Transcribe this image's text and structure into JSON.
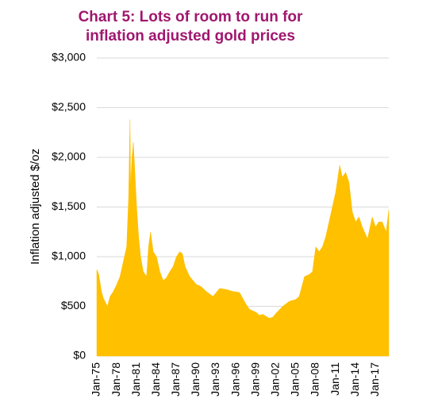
{
  "chart_data": {
    "type": "area",
    "title": [
      "Chart 5: Lots of room to run for",
      "inflation adjusted gold prices"
    ],
    "y_label": "Inflation adjusted $/oz",
    "color": "#ffc000",
    "grid": true,
    "xlim": [
      1975,
      2019
    ],
    "ylim": [
      0,
      3000
    ],
    "yticks": [
      {
        "value": 0,
        "label": "$0"
      },
      {
        "value": 500,
        "label": "$500"
      },
      {
        "value": 1000,
        "label": "$1,000"
      },
      {
        "value": 1500,
        "label": "$1,500"
      },
      {
        "value": 2000,
        "label": "$2,000"
      },
      {
        "value": 2500,
        "label": "$2,500"
      },
      {
        "value": 3000,
        "label": "$3,000"
      }
    ],
    "xticks": [
      {
        "value": 1975,
        "label": "Jan-75"
      },
      {
        "value": 1978,
        "label": "Jan-78"
      },
      {
        "value": 1981,
        "label": "Jan-81"
      },
      {
        "value": 1984,
        "label": "Jan-84"
      },
      {
        "value": 1987,
        "label": "Jan-87"
      },
      {
        "value": 1990,
        "label": "Jan-90"
      },
      {
        "value": 1993,
        "label": "Jan-93"
      },
      {
        "value": 1996,
        "label": "Jan-96"
      },
      {
        "value": 1999,
        "label": "Jan-99"
      },
      {
        "value": 2002,
        "label": "Jan-02"
      },
      {
        "value": 2005,
        "label": "Jan-05"
      },
      {
        "value": 2008,
        "label": "Jan-08"
      },
      {
        "value": 2011,
        "label": "Jan-11"
      },
      {
        "value": 2014,
        "label": "Jan-14"
      },
      {
        "value": 2017,
        "label": "Jan-17"
      }
    ],
    "x": [
      1975.0,
      1975.3,
      1975.7,
      1976.0,
      1976.6,
      1977.0,
      1977.5,
      1978.0,
      1978.5,
      1979.0,
      1979.5,
      1979.8,
      1980.0,
      1980.1,
      1980.3,
      1980.5,
      1980.7,
      1981.0,
      1981.3,
      1981.6,
      1982.0,
      1982.5,
      1982.8,
      1983.1,
      1983.5,
      1984.0,
      1984.5,
      1985.0,
      1985.5,
      1986.0,
      1986.5,
      1987.0,
      1987.5,
      1987.9,
      1988.3,
      1989.0,
      1990.0,
      1990.7,
      1991.5,
      1992.5,
      1993.5,
      1994.5,
      1995.5,
      1996.5,
      1997.0,
      1997.5,
      1998.0,
      1999.0,
      1999.5,
      2000.0,
      2001.0,
      2001.5,
      2002.0,
      2003.0,
      2004.0,
      2005.0,
      2005.5,
      2006.3,
      2007.0,
      2007.5,
      2008.0,
      2008.5,
      2009.0,
      2009.5,
      2010.0,
      2010.5,
      2011.0,
      2011.6,
      2012.0,
      2012.5,
      2013.0,
      2013.5,
      2014.0,
      2014.5,
      2015.0,
      2015.8,
      2016.5,
      2017.0,
      2017.5,
      2018.0,
      2018.6,
      2019.0
    ],
    "values": [
      870,
      820,
      650,
      580,
      500,
      600,
      650,
      720,
      800,
      950,
      1100,
      1600,
      2380,
      1700,
      2000,
      2150,
      1900,
      1500,
      1200,
      1000,
      850,
      800,
      1100,
      1250,
      1050,
      1000,
      850,
      760,
      790,
      850,
      900,
      1000,
      1050,
      1030,
      900,
      800,
      720,
      700,
      650,
      600,
      680,
      670,
      650,
      640,
      580,
      520,
      470,
      440,
      410,
      420,
      380,
      390,
      430,
      500,
      550,
      570,
      600,
      800,
      820,
      850,
      1100,
      1050,
      1100,
      1200,
      1350,
      1500,
      1650,
      1920,
      1800,
      1850,
      1750,
      1450,
      1350,
      1400,
      1300,
      1180,
      1400,
      1300,
      1350,
      1350,
      1250,
      1470
    ]
  }
}
